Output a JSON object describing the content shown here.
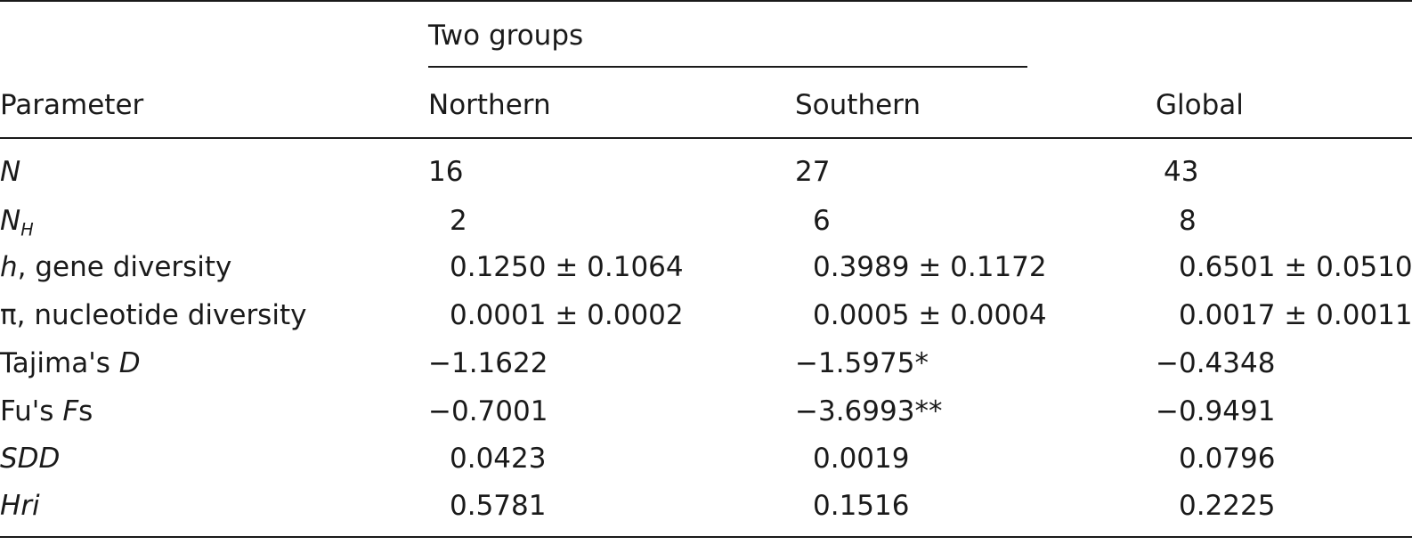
{
  "header": {
    "group_label": "Two groups",
    "parameter_label": "Parameter",
    "northern_label": "Northern",
    "southern_label": "Southern",
    "global_label": "Global"
  },
  "rows": {
    "n": {
      "label": "N",
      "northern": "16",
      "southern": "27",
      "global": "43"
    },
    "nh": {
      "label": "N",
      "label_sub": "H",
      "northern": "2",
      "southern": "6",
      "global": "8"
    },
    "h": {
      "label_italic": "h",
      "label": ", gene diversity",
      "northern": "0.1250 ± 0.1064",
      "southern": "0.3989 ± 0.1172",
      "global": "0.6501 ± 0.0510"
    },
    "pi": {
      "label": "π, nucleotide diversity",
      "northern": "0.0001 ± 0.0002",
      "southern": "0.0005 ± 0.0004",
      "global": "0.0017 ± 0.0011"
    },
    "tajima": {
      "label": "Tajima's ",
      "label_italic": "D",
      "northern": "−1.1622",
      "southern": "−1.5975*",
      "global": "−0.4348"
    },
    "fu": {
      "label": "Fu's ",
      "label_italic": "F",
      "label_tail": "s",
      "northern": "−0.7001",
      "southern": "−3.6993**",
      "global": "−0.9491"
    },
    "sdd": {
      "label": "SDD",
      "northern": "0.0423",
      "southern": "0.0019",
      "global": "0.0796"
    },
    "hri": {
      "label": "Hri",
      "northern": "0.5781",
      "southern": "0.1516",
      "global": "0.2225"
    }
  }
}
